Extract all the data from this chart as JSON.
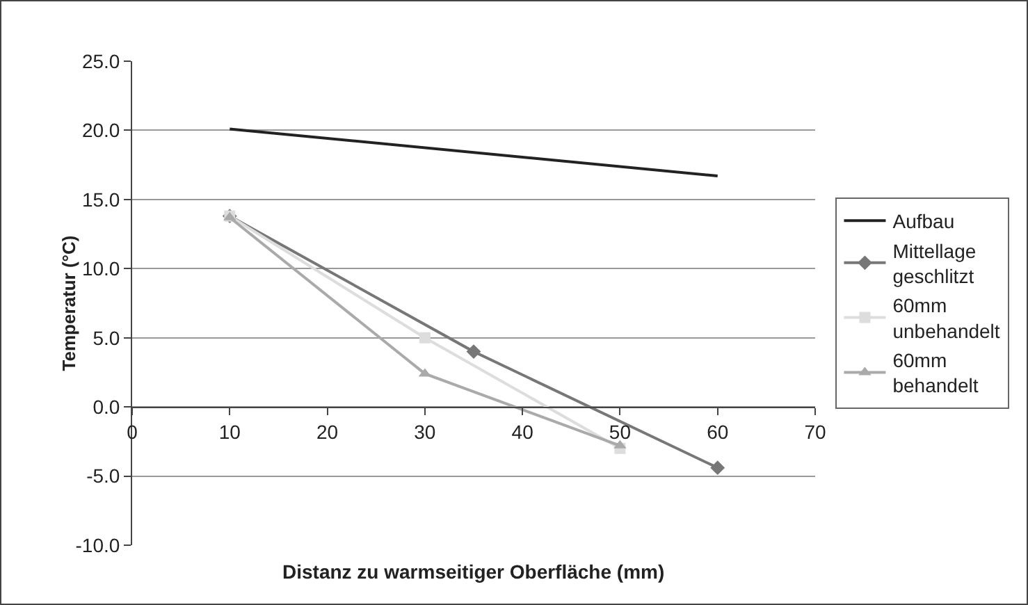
{
  "chart_data": {
    "type": "line",
    "xlabel": "Distanz zu warmseitiger Oberfläche (mm)",
    "ylabel": "Temperatur (°C)",
    "series": [
      {
        "name": "Aufbau",
        "color": "#222222",
        "marker": "none",
        "x": [
          10,
          60
        ],
        "values": [
          20.1,
          16.7
        ]
      },
      {
        "name": "Mittellage geschlitzt",
        "color": "#777777",
        "marker": "diamond",
        "x": [
          10,
          35,
          60
        ],
        "values": [
          13.8,
          4.0,
          -4.4
        ]
      },
      {
        "name": "60mm unbehandelt",
        "color": "#dddddd",
        "marker": "square",
        "x": [
          10,
          30,
          50
        ],
        "values": [
          13.8,
          5.0,
          -3.0
        ]
      },
      {
        "name": "60mm behandelt",
        "color": "#aaaaaa",
        "marker": "triangle",
        "x": [
          10,
          30,
          50
        ],
        "values": [
          13.7,
          2.4,
          -2.8
        ]
      }
    ],
    "xlim": [
      0,
      70
    ],
    "xticks": [
      0,
      10,
      20,
      30,
      40,
      50,
      60,
      70
    ],
    "ylim": [
      -10,
      25
    ],
    "yticks": [
      {
        "value": -10,
        "label": "-10.0"
      },
      {
        "value": -5,
        "label": "-5.0"
      },
      {
        "value": 0,
        "label": "0.0"
      },
      {
        "value": 5,
        "label": "5.0"
      },
      {
        "value": 10,
        "label": "10.0"
      },
      {
        "value": 15,
        "label": "15.0"
      },
      {
        "value": 20,
        "label": "20.0"
      },
      {
        "value": 25,
        "label": "25.0"
      }
    ],
    "grid": "y",
    "legend": "right",
    "line_style": "solid"
  }
}
